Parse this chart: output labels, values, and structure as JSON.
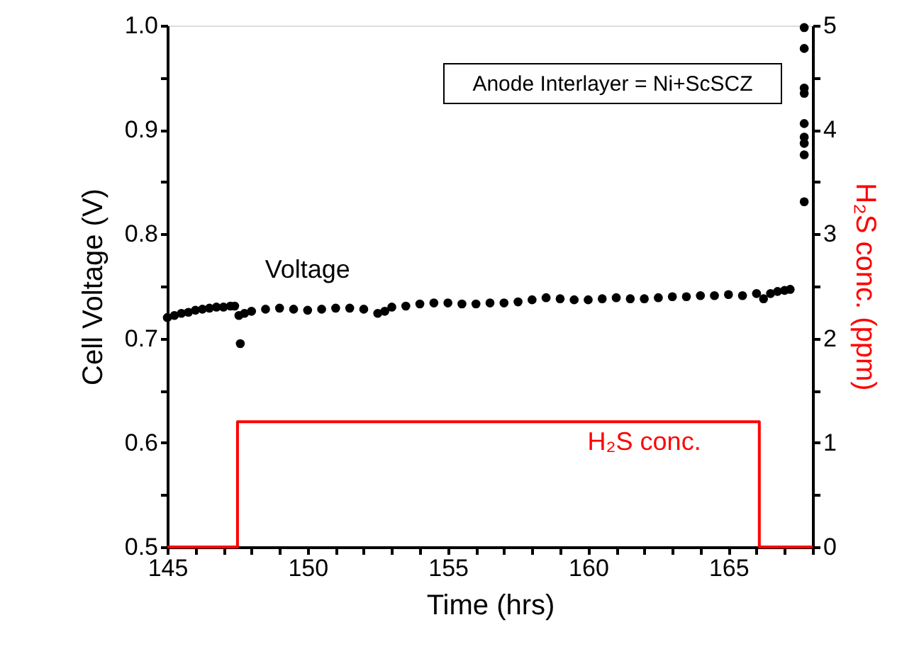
{
  "chart_data": {
    "type": "scatter",
    "xlabel": "Time (hrs)",
    "ylabel": "Cell Voltage (V)",
    "y2label": "H₂S conc. (ppm)",
    "annotations": [
      "Anode Interlayer = Ni+ScSCZ"
    ],
    "xlim": [
      145,
      168
    ],
    "ylim": [
      0.5,
      1.0
    ],
    "y2lim": [
      0,
      5
    ],
    "xticks": [
      145,
      {
        "value": 146,
        "label": null
      },
      {
        "value": 147,
        "label": null
      },
      {
        "value": 148,
        "label": null
      },
      {
        "value": 149,
        "label": null
      },
      150,
      {
        "value": 151,
        "label": null
      },
      {
        "value": 152,
        "label": null
      },
      {
        "value": 153,
        "label": null
      },
      {
        "value": 154,
        "label": null
      },
      155,
      {
        "value": 156,
        "label": null
      },
      {
        "value": 157,
        "label": null
      },
      {
        "value": 158,
        "label": null
      },
      {
        "value": 159,
        "label": null
      },
      160,
      {
        "value": 161,
        "label": null
      },
      {
        "value": 162,
        "label": null
      },
      {
        "value": 163,
        "label": null
      },
      {
        "value": 164,
        "label": null
      },
      165,
      {
        "value": 166,
        "label": null
      },
      {
        "value": 167,
        "label": null
      },
      {
        "value": 168,
        "label": null
      }
    ],
    "yticks": [
      0.5,
      {
        "value": 0.55,
        "label": null
      },
      0.6,
      {
        "value": 0.65,
        "label": null
      },
      0.7,
      {
        "value": 0.75,
        "label": null
      },
      0.8,
      {
        "value": 0.85,
        "label": null
      },
      0.9,
      {
        "value": 0.95,
        "label": null
      },
      {
        "value": 1.0,
        "label": "1.0"
      }
    ],
    "y2ticks": [
      0,
      {
        "value": 0.5,
        "label": null
      },
      1,
      {
        "value": 1.5,
        "label": null
      },
      2,
      {
        "value": 2.5,
        "label": null
      },
      3,
      {
        "value": 3.5,
        "label": null
      },
      4,
      {
        "value": 4.5,
        "label": null
      },
      5
    ],
    "grid": false,
    "series": [
      {
        "name": "Voltage",
        "color": "#000000",
        "marker": "circle",
        "x": [
          145.0,
          145.25,
          145.5,
          145.75,
          146.0,
          146.25,
          146.5,
          146.75,
          147.0,
          147.25,
          147.4,
          147.55,
          147.6,
          147.75,
          148.0,
          148.5,
          149.0,
          149.5,
          150.0,
          150.5,
          151.0,
          151.5,
          152.0,
          152.5,
          152.75,
          153.0,
          153.5,
          154.0,
          154.5,
          155.0,
          155.5,
          156.0,
          156.5,
          157.0,
          157.5,
          158.0,
          158.5,
          159.0,
          159.5,
          160.0,
          160.5,
          161.0,
          161.5,
          162.0,
          162.5,
          163.0,
          163.5,
          164.0,
          164.5,
          165.0,
          165.5,
          166.0,
          166.25,
          166.5,
          166.75,
          167.0,
          167.2,
          167.7,
          167.7,
          167.7,
          167.7,
          167.7,
          167.7,
          167.7,
          167.7,
          167.7
        ],
        "values": [
          0.72,
          0.722,
          0.724,
          0.725,
          0.727,
          0.728,
          0.729,
          0.73,
          0.73,
          0.731,
          0.731,
          0.722,
          0.695,
          0.724,
          0.726,
          0.728,
          0.729,
          0.728,
          0.727,
          0.728,
          0.729,
          0.729,
          0.728,
          0.724,
          0.726,
          0.73,
          0.731,
          0.733,
          0.734,
          0.734,
          0.733,
          0.733,
          0.734,
          0.734,
          0.735,
          0.737,
          0.739,
          0.738,
          0.737,
          0.737,
          0.738,
          0.739,
          0.738,
          0.738,
          0.739,
          0.74,
          0.74,
          0.741,
          0.741,
          0.742,
          0.741,
          0.743,
          0.738,
          0.743,
          0.745,
          0.746,
          0.747,
          0.998,
          0.978,
          0.94,
          0.935,
          0.906,
          0.893,
          0.887,
          0.876,
          0.831
        ]
      },
      {
        "name": "H₂S conc.",
        "type": "step",
        "axis": "y2",
        "color": "#ff0000",
        "line_style": "solid",
        "x": [
          145,
          147.5,
          166.1,
          168
        ],
        "values": [
          0,
          1.2,
          0,
          0
        ]
      }
    ]
  }
}
